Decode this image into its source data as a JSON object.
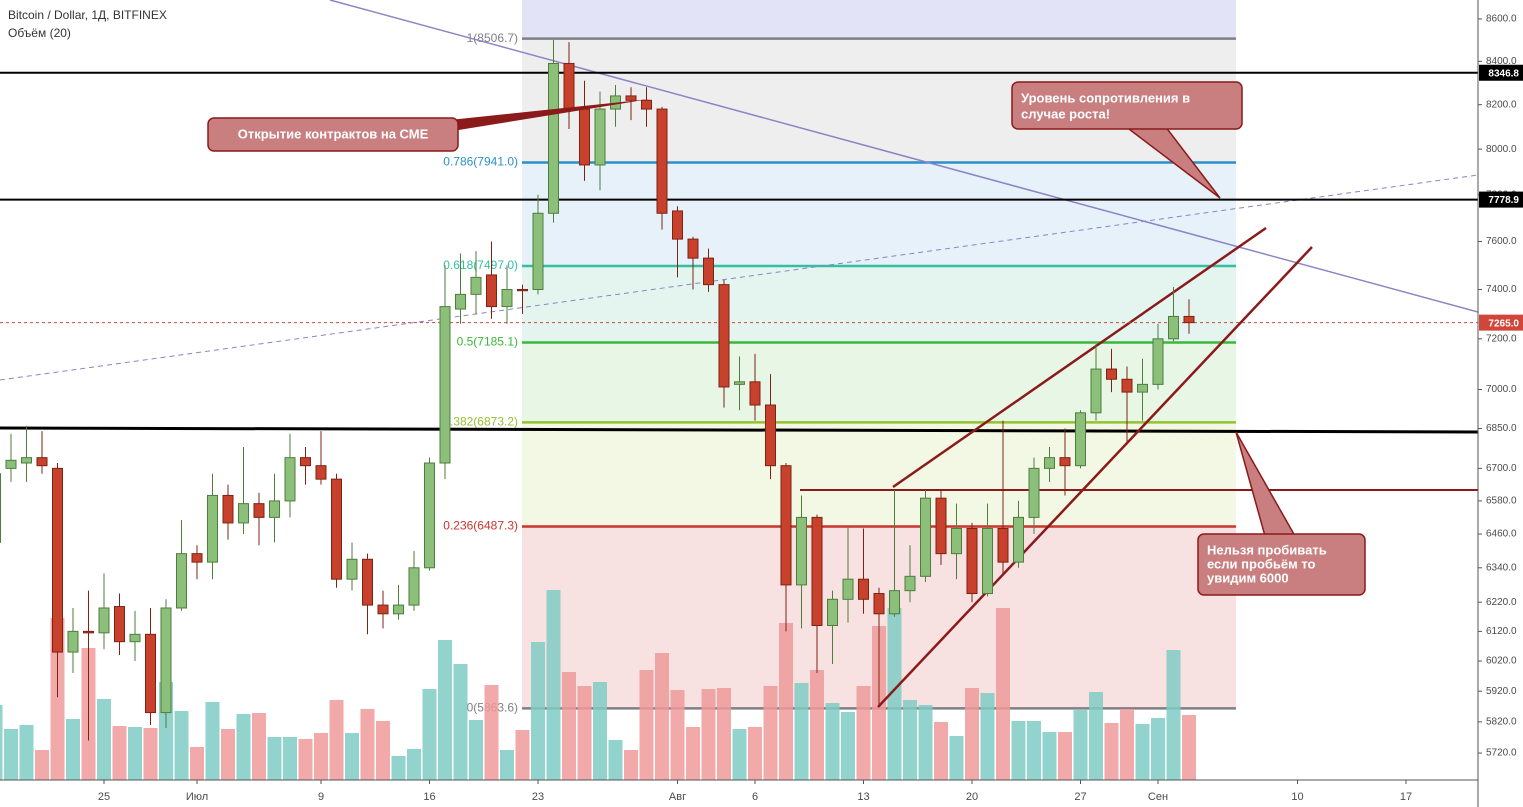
{
  "header": {
    "title": "Bitcoin / Dollar, 1Д, BITFINEX",
    "indicator": "Объём (20)"
  },
  "chart_data": {
    "type": "candlestick",
    "log_scale": true,
    "grid": false,
    "up_color": "#8cc07a",
    "up_border": "#4e7d3e",
    "down_color": "#c8412c",
    "down_border": "#7d2314",
    "volume_up_color": "#80cbc4",
    "volume_down_color": "#ef9a9a",
    "categories": [
      null,
      null,
      null,
      null,
      null,
      null,
      null,
      "25",
      null,
      null,
      null,
      null,
      null,
      "Июл",
      null,
      null,
      null,
      null,
      null,
      null,
      null,
      "9",
      null,
      null,
      null,
      null,
      null,
      null,
      "16",
      null,
      null,
      null,
      null,
      null,
      null,
      "23",
      null,
      null,
      null,
      null,
      null,
      null,
      null,
      null,
      "Авг",
      null,
      null,
      null,
      null,
      "6",
      null,
      null,
      null,
      null,
      null,
      null,
      "13",
      null,
      null,
      null,
      null,
      null,
      null,
      "20",
      null,
      null,
      null,
      null,
      null,
      null,
      "27",
      null,
      null,
      null,
      null,
      "Сен",
      null,
      null,
      null,
      null,
      null,
      null,
      null,
      null,
      "10",
      null,
      null,
      null,
      null,
      null,
      null,
      "17",
      null,
      null,
      null,
      null
    ],
    "open": [
      6430,
      6700,
      6720,
      6740,
      6700,
      6050,
      6120,
      6115,
      6205,
      6085,
      6110,
      5850,
      6200,
      6390,
      6360,
      6600,
      6500,
      6570,
      6520,
      6580,
      6740,
      6710,
      6660,
      6300,
      6370,
      6210,
      6180,
      6210,
      6340,
      6720,
      7320,
      7380,
      7460,
      7330,
      7400,
      7400,
      7720,
      8390,
      8180,
      7930,
      8180,
      8240,
      8220,
      8180,
      7730,
      7610,
      7530,
      7420,
      7020,
      7030,
      6940,
      6710,
      6280,
      6520,
      6140,
      6230,
      6300,
      6250,
      6180,
      6260,
      6310,
      6590,
      6390,
      6480,
      6250,
      6480,
      6360,
      6520,
      6700,
      6740,
      6710,
      6910,
      7080,
      7040,
      6990,
      7020,
      7200,
      7290,
      null,
      null,
      null,
      null,
      null,
      null,
      null,
      null,
      null,
      null,
      null,
      null,
      null,
      null,
      null,
      null,
      null,
      null
    ],
    "high": [
      6720,
      6830,
      6860,
      6840,
      6720,
      6200,
      6260,
      6320,
      6250,
      6190,
      6200,
      6230,
      6510,
      6420,
      6680,
      6640,
      6780,
      6610,
      6680,
      6830,
      6780,
      6840,
      6680,
      6430,
      6390,
      6260,
      6280,
      6400,
      6740,
      7500,
      7550,
      7560,
      7600,
      7500,
      7420,
      7800,
      8500,
      8490,
      8310,
      8260,
      8290,
      8280,
      8280,
      8190,
      7750,
      7620,
      7570,
      7440,
      7130,
      7140,
      7060,
      6720,
      6600,
      6530,
      6260,
      6490,
      6480,
      6270,
      6620,
      6420,
      6620,
      6620,
      6570,
      6500,
      6570,
      6880,
      6580,
      6740,
      6780,
      6850,
      6920,
      7180,
      7160,
      7090,
      7120,
      7260,
      7410,
      7360,
      null,
      null,
      null,
      null,
      null,
      null,
      null,
      null,
      null,
      null,
      null,
      null,
      null,
      null,
      null,
      null,
      null,
      null
    ],
    "low": [
      6420,
      6650,
      6650,
      6680,
      5900,
      5980,
      5760,
      6060,
      6040,
      6020,
      5810,
      5800,
      6190,
      6300,
      6300,
      6440,
      6460,
      6420,
      6430,
      6520,
      6640,
      6640,
      6270,
      6260,
      6110,
      6130,
      6160,
      6190,
      6330,
      6660,
      7260,
      7300,
      7280,
      7260,
      7300,
      7380,
      7680,
      8090,
      7860,
      7820,
      8100,
      8130,
      8100,
      7650,
      7450,
      7400,
      7390,
      6930,
      6920,
      6880,
      6660,
      6120,
      6130,
      5980,
      6010,
      6150,
      6180,
      5870,
      6170,
      6220,
      6290,
      6350,
      6300,
      6220,
      6240,
      6320,
      6340,
      6460,
      6650,
      6600,
      6700,
      6880,
      6990,
      6800,
      6880,
      7000,
      7190,
      7220,
      null,
      null,
      null,
      null,
      null,
      null,
      null,
      null,
      null,
      null,
      null,
      null,
      null,
      null,
      null,
      null,
      null,
      null
    ],
    "close": [
      6680,
      6730,
      6740,
      6710,
      6050,
      6120,
      6115,
      6200,
      6085,
      6110,
      5850,
      6200,
      6390,
      6360,
      6600,
      6500,
      6570,
      6520,
      6580,
      6740,
      6710,
      6660,
      6300,
      6370,
      6210,
      6180,
      6210,
      6340,
      6720,
      7330,
      7380,
      7450,
      7330,
      7400,
      7395,
      7720,
      8390,
      8180,
      7930,
      8180,
      8240,
      8220,
      8180,
      7720,
      7610,
      7530,
      7420,
      7010,
      7030,
      6940,
      6710,
      6280,
      6520,
      6140,
      6230,
      6300,
      6230,
      6180,
      6260,
      6310,
      6590,
      6390,
      6480,
      6250,
      6480,
      6360,
      6520,
      6700,
      6740,
      6710,
      6910,
      7080,
      7040,
      6990,
      7020,
      7200,
      7290,
      7265,
      null,
      null,
      null,
      null,
      null,
      null,
      null,
      null,
      null,
      null,
      null,
      null,
      null,
      null,
      null,
      null,
      null,
      null
    ],
    "volume": [
      75,
      51,
      55,
      30,
      162,
      61,
      132,
      81,
      54,
      53,
      52,
      98,
      69,
      33,
      78,
      51,
      66,
      67,
      43,
      43,
      41,
      47,
      80,
      47,
      71,
      59,
      24,
      31,
      91,
      140,
      116,
      60,
      95,
      30,
      50,
      138,
      190,
      108,
      94,
      98,
      40,
      30,
      110,
      127,
      90,
      53,
      91,
      92,
      51,
      53,
      94,
      157,
      97,
      110,
      77,
      68,
      94,
      154,
      172,
      80,
      75,
      58,
      44,
      92,
      87,
      172,
      59,
      59,
      48,
      48,
      70,
      88,
      57,
      71,
      56,
      62,
      130,
      65,
      null,
      null,
      null,
      null,
      null,
      null,
      null,
      null,
      null,
      null,
      null,
      null,
      null,
      null,
      null,
      null,
      null,
      null
    ],
    "ylim": [
      5635,
      8691
    ],
    "yticks": [
      {
        "value": 8600,
        "label": "8600.0"
      },
      {
        "value": 8400,
        "label": "8400.0"
      },
      {
        "value": 8200,
        "label": "8200.0"
      },
      {
        "value": 8000,
        "label": "8000.0"
      },
      {
        "value": 7800,
        "label": "7800.0"
      },
      {
        "value": 7600,
        "label": "7600.0"
      },
      {
        "value": 7400,
        "label": "7400.0"
      },
      {
        "value": 7200,
        "label": "7200.0"
      },
      {
        "value": 7000,
        "label": "7000.0"
      },
      {
        "value": 6850,
        "label": "6850.0"
      },
      {
        "value": 6700,
        "label": "6700.0"
      },
      {
        "value": 6580,
        "label": "6580.0"
      },
      {
        "value": 6460,
        "label": "6460.0"
      },
      {
        "value": 6340,
        "label": "6340.0"
      },
      {
        "value": 6220,
        "label": "6220.0"
      },
      {
        "value": 6120,
        "label": "6120.0"
      },
      {
        "value": 6020,
        "label": "6020.0"
      },
      {
        "value": 5920,
        "label": "5920.0"
      },
      {
        "value": 5820,
        "label": "5820.0"
      },
      {
        "value": 5720,
        "label": "5720.0"
      }
    ],
    "fib_top_color": "#e3e3f7",
    "fib": [
      {
        "level": 1,
        "price": 8506.7,
        "label": "1(8506.7)",
        "color": "#7f7f86",
        "zone": "#eeeeee"
      },
      {
        "level": 0.786,
        "price": 7941.0,
        "label": "0.786(7941.0)",
        "color": "#2e8fc8",
        "zone": "#e6f1fa"
      },
      {
        "level": 0.618,
        "price": 7497.0,
        "label": "0.618(7497.0)",
        "color": "#33bfa0",
        "zone": "#e4f5ef"
      },
      {
        "level": 0.5,
        "price": 7185.1,
        "label": "0.5(7185.1)",
        "color": "#3bb83b",
        "zone": "#e8f7e5"
      },
      {
        "level": 0.382,
        "price": 6873.2,
        "label": "0.382(6873.2)",
        "color": "#94c22f",
        "zone": "#f3f8e4"
      },
      {
        "level": 0.236,
        "price": 6487.3,
        "label": "0.236(6487.3)",
        "color": "#c9352e",
        "zone": "#f8e1e1"
      },
      {
        "level": 0,
        "price": 5863.6,
        "label": "0(5863.6)",
        "color": "#7f7f86",
        "zone": "#f8e1e1"
      }
    ],
    "levels": [
      {
        "value": 8346.8,
        "label": "8346.8",
        "color": "#000000",
        "dashed": false
      },
      {
        "value": 7778.9,
        "label": "7778.9",
        "color": "#000000",
        "dashed": false
      },
      {
        "value": 7265.0,
        "label": "7265.0",
        "color": "#d0463a",
        "dashed": true
      }
    ],
    "annotations": [
      {
        "lines": [
          "Открытие контрактов на СМЕ"
        ]
      },
      {
        "lines": [
          "Уровень сопротивления в",
          "случае роста!"
        ]
      },
      {
        "lines": [
          "Нельзя пробивать",
          "если пробьём то",
          "увидим 6000"
        ]
      }
    ]
  }
}
